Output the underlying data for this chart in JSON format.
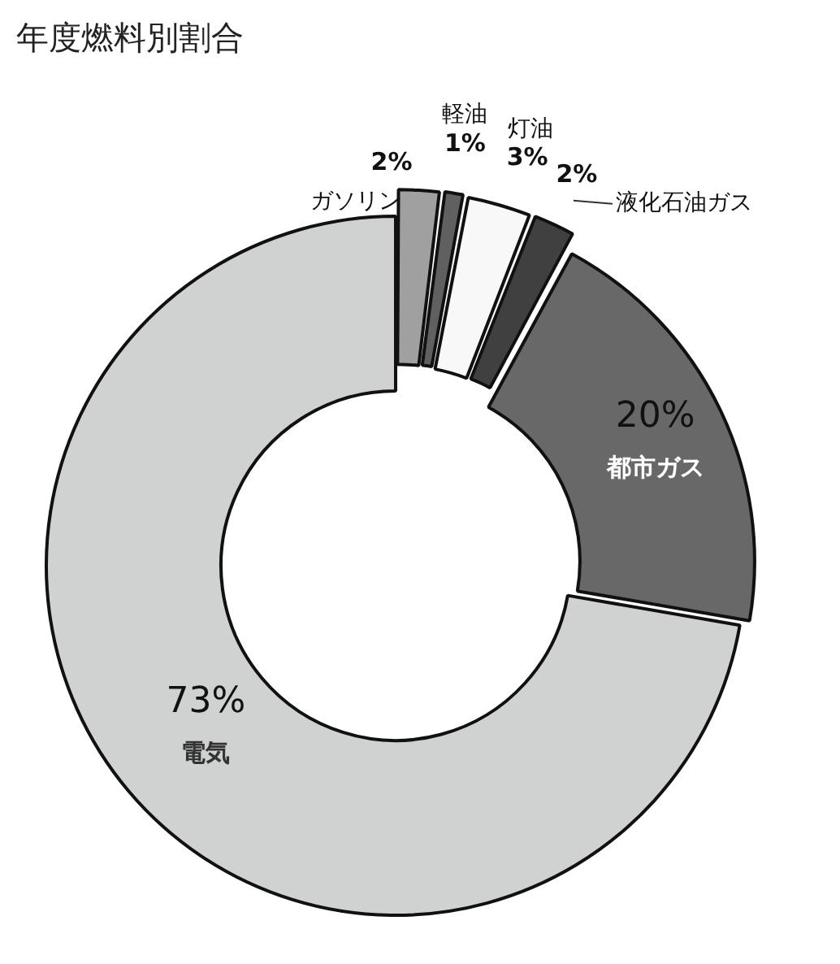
{
  "chart_data": {
    "type": "donut",
    "title": "年度燃料別割合",
    "categories": [
      "ガソリン",
      "軽油",
      "灯油",
      "液化石油ガス",
      "都市ガス",
      "電気"
    ],
    "values": [
      2,
      1,
      3,
      2,
      20,
      73
    ],
    "value_labels": [
      "2%",
      "1%",
      "3%",
      "2%",
      "20%",
      "73%"
    ],
    "colors": [
      "#a0a0a0",
      "#606060",
      "#f8f8f8",
      "#404040",
      "#686868",
      "#d0d2d2"
    ]
  }
}
